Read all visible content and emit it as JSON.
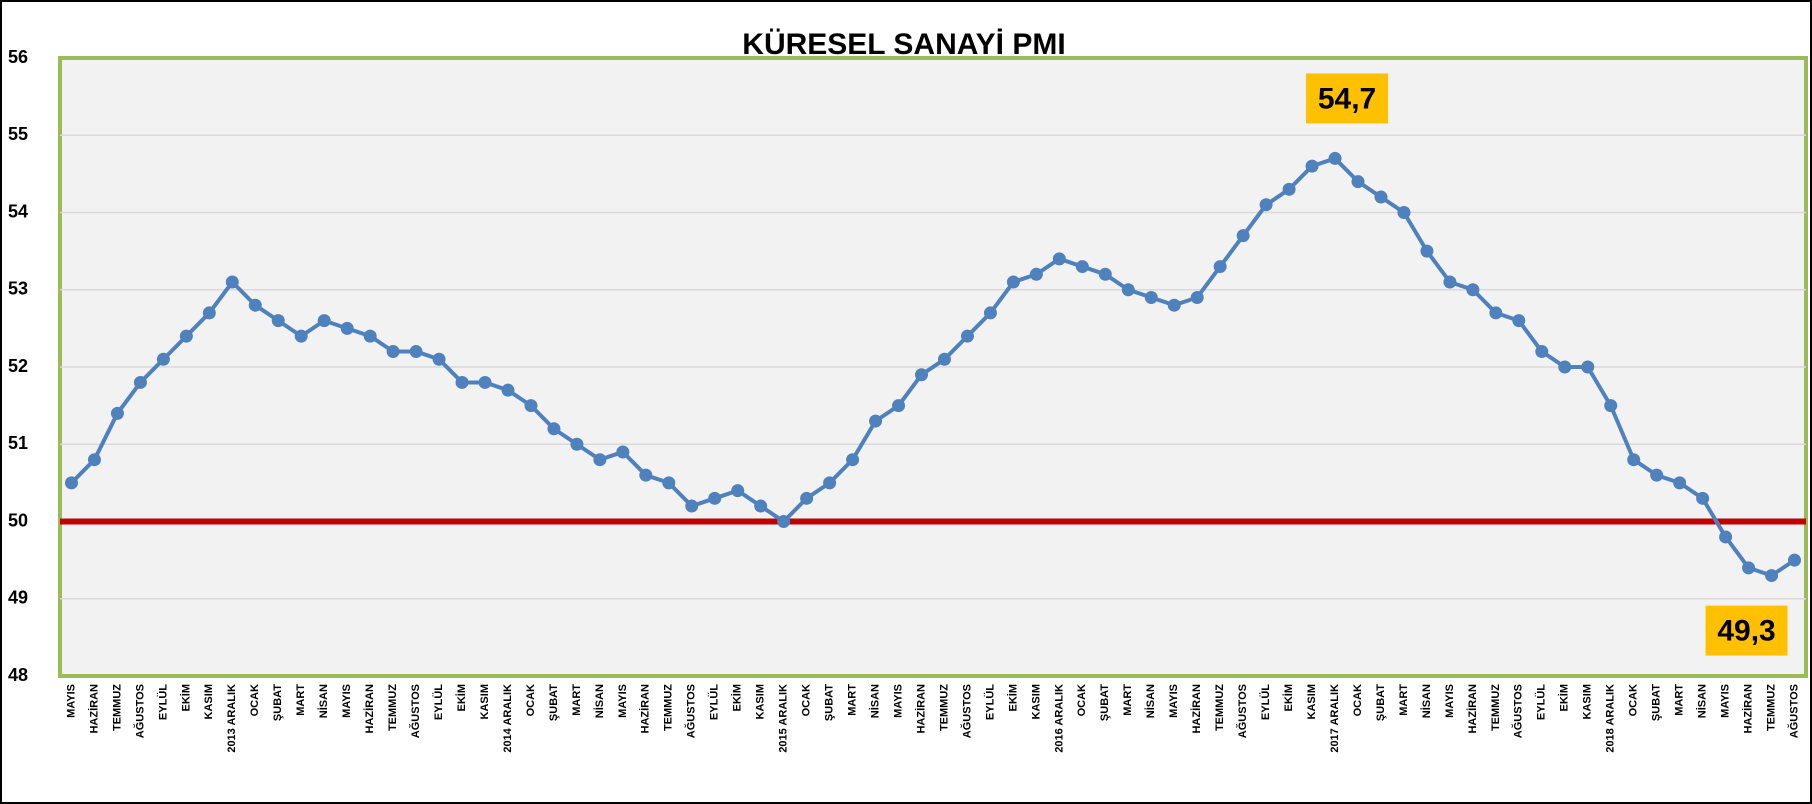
{
  "chart_data": {
    "type": "line",
    "title": "KÜRESEL SANAYİ PMI",
    "categories": [
      "MAYIS",
      "HAZİRAN",
      "TEMMUZ",
      "AĞUSTOS",
      "EYLÜL",
      "EKİM",
      "KASIM",
      "2013 ARALIK",
      "OCAK",
      "ŞUBAT",
      "MART",
      "NİSAN",
      "MAYIS",
      "HAZİRAN",
      "TEMMUZ",
      "AĞUSTOS",
      "EYLÜL",
      "EKİM",
      "KASIM",
      "2014 ARALIK",
      "OCAK",
      "ŞUBAT",
      "MART",
      "NİSAN",
      "MAYIS",
      "HAZİRAN",
      "TEMMUZ",
      "AĞUSTOS",
      "EYLÜL",
      "EKİM",
      "KASIM",
      "2015 ARALIK",
      "OCAK",
      "ŞUBAT",
      "MART",
      "NİSAN",
      "MAYIS",
      "HAZİRAN",
      "TEMMUZ",
      "AĞUSTOS",
      "EYLÜL",
      "EKİM",
      "KASIM",
      "2016 ARALIK",
      "OCAK",
      "ŞUBAT",
      "MART",
      "NİSAN",
      "MAYIS",
      "HAZİRAN",
      "TEMMUZ",
      "AĞUSTOS",
      "EYLÜL",
      "EKİM",
      "KASIM",
      "2017 ARALIK",
      "OCAK",
      "ŞUBAT",
      "MART",
      "NİSAN",
      "MAYIS",
      "HAZİRAN",
      "TEMMUZ",
      "AĞUSTOS",
      "EYLÜL",
      "EKİM",
      "KASIM",
      "2018 ARALIK",
      "OCAK",
      "ŞUBAT",
      "MART",
      "NİSAN",
      "MAYIS",
      "HAZİRAN",
      "TEMMUZ",
      "AĞUSTOS"
    ],
    "values": [
      50.5,
      50.8,
      51.4,
      51.8,
      52.1,
      52.4,
      52.7,
      53.1,
      52.8,
      52.6,
      52.4,
      52.6,
      52.5,
      52.4,
      52.2,
      52.2,
      52.1,
      51.8,
      51.8,
      51.7,
      51.5,
      51.2,
      51.0,
      50.8,
      50.9,
      50.6,
      50.5,
      50.2,
      50.3,
      50.4,
      50.2,
      50.0,
      50.3,
      50.5,
      50.8,
      51.3,
      51.5,
      51.9,
      52.1,
      52.4,
      52.7,
      53.1,
      53.2,
      53.4,
      53.3,
      53.2,
      53.0,
      52.9,
      52.8,
      52.9,
      53.3,
      53.7,
      54.1,
      54.3,
      54.6,
      54.7,
      54.4,
      54.2,
      54.0,
      53.5,
      53.1,
      53.0,
      52.7,
      52.6,
      52.2,
      52.0,
      52.0,
      51.5,
      50.8,
      50.6,
      50.5,
      50.3,
      49.8,
      49.4,
      49.3,
      49.5
    ],
    "value_labels": [
      null,
      null,
      null,
      null,
      null,
      null,
      null,
      null,
      null,
      null,
      null,
      null,
      null,
      null,
      null,
      null,
      null,
      null,
      null,
      null,
      null,
      null,
      null,
      null,
      null,
      null,
      null,
      null,
      null,
      null,
      null,
      null,
      null,
      null,
      null,
      null,
      null,
      null,
      null,
      null,
      null,
      null,
      null,
      null,
      null,
      null,
      null,
      null,
      null,
      null,
      null,
      null,
      null,
      null,
      null,
      "54,7",
      null,
      null,
      null,
      null,
      null,
      null,
      null,
      null,
      null,
      null,
      null,
      null,
      null,
      null,
      null,
      null,
      null,
      null,
      "49,3",
      null
    ],
    "color": "#4f81bd",
    "label_color": "#ffc000",
    "reference_line": {
      "value": 50,
      "color": "#c00000"
    },
    "ylim": [
      48,
      56
    ],
    "yticks": [
      48,
      49,
      50,
      51,
      52,
      53,
      54,
      55,
      56
    ],
    "grid": true
  }
}
